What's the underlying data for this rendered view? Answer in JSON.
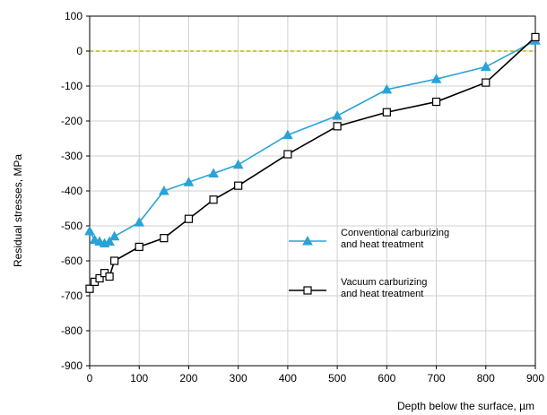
{
  "chart_data": {
    "type": "line",
    "xlabel": "Depth below the surface,  µm",
    "ylabel": "Residual stresses,  MPa",
    "xlim": [
      0,
      900
    ],
    "ylim": [
      -900,
      100
    ],
    "x_ticks": [
      "0",
      "100",
      "200",
      "300",
      "400",
      "500",
      "600",
      "700",
      "800",
      "900"
    ],
    "y_ticks": [
      "100",
      "0",
      "-100",
      "-200",
      "-300",
      "-400",
      "-500",
      "-600",
      "-700",
      "-800",
      "-900"
    ],
    "grid": true,
    "zero_line": {
      "y": 0,
      "color": "#c8b400",
      "style": "dashed"
    },
    "legend_position": "center-right",
    "series": [
      {
        "name": "Conventional carburizing and heat treatment",
        "legend_lines": [
          "Conventional carburizing",
          "and heat treatment"
        ],
        "color": "#29a3d6",
        "marker": "triangle",
        "x": [
          0,
          10,
          20,
          30,
          40,
          50,
          100,
          150,
          200,
          250,
          300,
          400,
          500,
          600,
          700,
          800,
          900
        ],
        "y": [
          -515,
          -540,
          -545,
          -550,
          -545,
          -530,
          -490,
          -400,
          -375,
          -350,
          -325,
          -240,
          -185,
          -110,
          -80,
          -45,
          30
        ]
      },
      {
        "name": "Vacuum carburizing and heat treatment",
        "legend_lines": [
          "Vacuum carburizing",
          "and heat treatment"
        ],
        "color": "#000000",
        "marker": "square",
        "x": [
          0,
          10,
          20,
          30,
          40,
          50,
          100,
          150,
          200,
          250,
          300,
          400,
          500,
          600,
          700,
          800,
          900
        ],
        "y": [
          -680,
          -660,
          -650,
          -635,
          -645,
          -600,
          -560,
          -535,
          -480,
          -425,
          -385,
          -295,
          -215,
          -175,
          -145,
          -90,
          40
        ]
      }
    ]
  }
}
